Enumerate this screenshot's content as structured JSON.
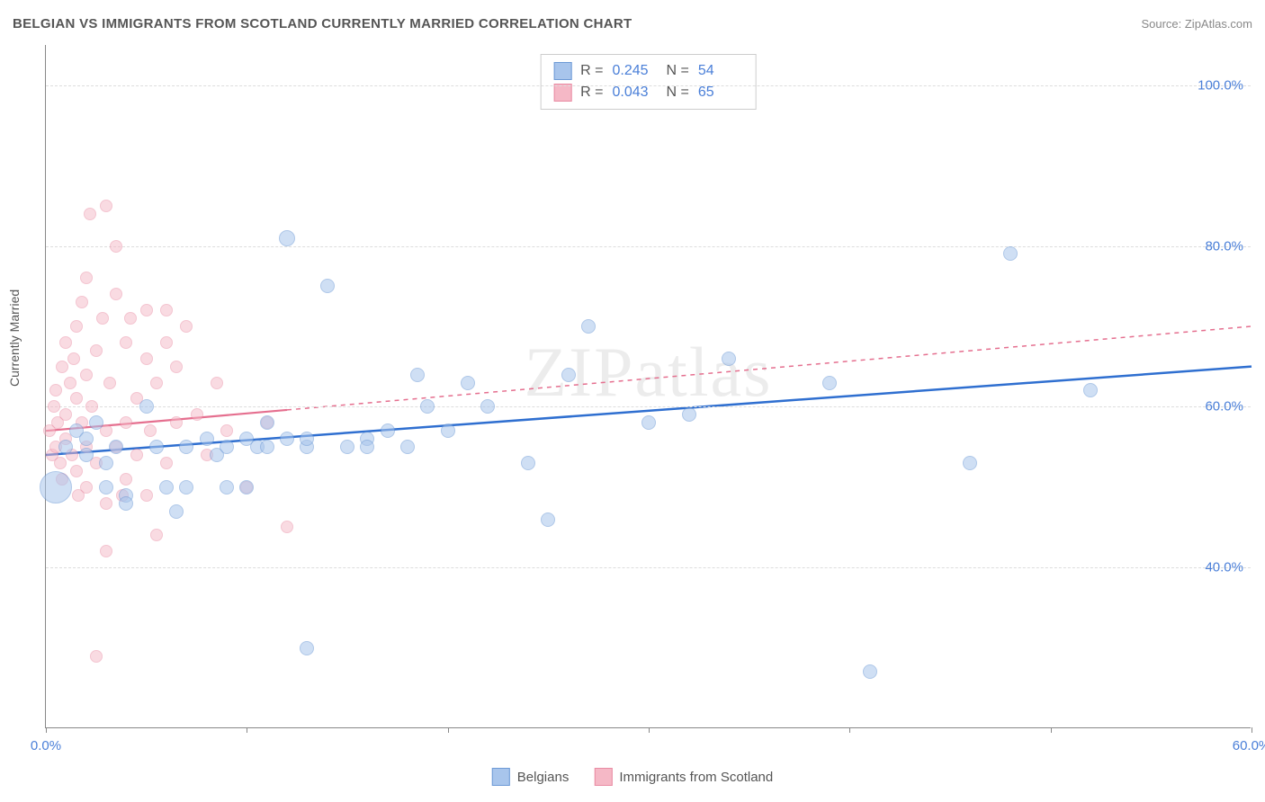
{
  "title": "BELGIAN VS IMMIGRANTS FROM SCOTLAND CURRENTLY MARRIED CORRELATION CHART",
  "source_prefix": "Source: ",
  "source_link": "ZipAtlas.com",
  "watermark": "ZIPatlas",
  "y_axis_label": "Currently Married",
  "chart": {
    "type": "scatter",
    "background_color": "#ffffff",
    "grid_color": "#dddddd",
    "axis_color": "#888888",
    "text_color": "#555555",
    "value_color": "#4a7fd8",
    "xlim": [
      0,
      60
    ],
    "ylim": [
      20,
      105
    ],
    "x_ticks": [
      0,
      10,
      20,
      30,
      40,
      50,
      60
    ],
    "x_tick_labels": {
      "0": "0.0%",
      "60": "60.0%"
    },
    "y_ticks": [
      40,
      60,
      80,
      100
    ],
    "y_tick_labels": {
      "40": "40.0%",
      "60": "60.0%",
      "80": "80.0%",
      "100": "100.0%"
    },
    "series": [
      {
        "key": "belgians",
        "label": "Belgians",
        "fill": "#a8c5ec",
        "stroke": "#6d9ad6",
        "fill_opacity": 0.55,
        "marker_r_default": 8,
        "line_color": "#2f6fd0",
        "line_width": 2.5,
        "line_dash": "none",
        "trend": {
          "x1": 0,
          "y1": 54,
          "x2": 60,
          "y2": 65
        },
        "stats": {
          "R": "0.245",
          "N": "54"
        },
        "points": [
          {
            "x": 0.5,
            "y": 50,
            "r": 18
          },
          {
            "x": 1,
            "y": 55
          },
          {
            "x": 1.5,
            "y": 57
          },
          {
            "x": 2,
            "y": 54
          },
          {
            "x": 2,
            "y": 56
          },
          {
            "x": 2.5,
            "y": 58
          },
          {
            "x": 3,
            "y": 53
          },
          {
            "x": 3,
            "y": 50
          },
          {
            "x": 3.5,
            "y": 55
          },
          {
            "x": 4,
            "y": 49
          },
          {
            "x": 4,
            "y": 48
          },
          {
            "x": 5,
            "y": 60
          },
          {
            "x": 5.5,
            "y": 55
          },
          {
            "x": 6,
            "y": 50
          },
          {
            "x": 6.5,
            "y": 47
          },
          {
            "x": 7,
            "y": 55
          },
          {
            "x": 7,
            "y": 50
          },
          {
            "x": 8,
            "y": 56
          },
          {
            "x": 8.5,
            "y": 54
          },
          {
            "x": 9,
            "y": 50
          },
          {
            "x": 9,
            "y": 55
          },
          {
            "x": 10,
            "y": 56
          },
          {
            "x": 10,
            "y": 50
          },
          {
            "x": 10.5,
            "y": 55
          },
          {
            "x": 11,
            "y": 58
          },
          {
            "x": 11,
            "y": 55
          },
          {
            "x": 12,
            "y": 56
          },
          {
            "x": 12,
            "y": 81,
            "r": 9
          },
          {
            "x": 13,
            "y": 55
          },
          {
            "x": 13,
            "y": 56
          },
          {
            "x": 13,
            "y": 30
          },
          {
            "x": 14,
            "y": 75
          },
          {
            "x": 15,
            "y": 55
          },
          {
            "x": 16,
            "y": 56
          },
          {
            "x": 16,
            "y": 55
          },
          {
            "x": 17,
            "y": 57
          },
          {
            "x": 18,
            "y": 55
          },
          {
            "x": 18.5,
            "y": 64
          },
          {
            "x": 19,
            "y": 60
          },
          {
            "x": 20,
            "y": 57
          },
          {
            "x": 21,
            "y": 63
          },
          {
            "x": 22,
            "y": 60
          },
          {
            "x": 24,
            "y": 53
          },
          {
            "x": 25,
            "y": 46
          },
          {
            "x": 26,
            "y": 64
          },
          {
            "x": 27,
            "y": 70
          },
          {
            "x": 30,
            "y": 58
          },
          {
            "x": 32,
            "y": 59
          },
          {
            "x": 34,
            "y": 66
          },
          {
            "x": 39,
            "y": 63
          },
          {
            "x": 41,
            "y": 27
          },
          {
            "x": 46,
            "y": 53
          },
          {
            "x": 48,
            "y": 79
          },
          {
            "x": 52,
            "y": 62
          }
        ]
      },
      {
        "key": "scotland",
        "label": "Immigrants from Scotland",
        "fill": "#f5b8c6",
        "stroke": "#e98ba3",
        "fill_opacity": 0.5,
        "marker_r_default": 7,
        "line_color": "#e56f8f",
        "line_width": 2.2,
        "line_dash": "5,5",
        "trend_solid_until_x": 12,
        "trend": {
          "x1": 0,
          "y1": 57,
          "x2": 60,
          "y2": 70
        },
        "stats": {
          "R": "0.043",
          "N": "65"
        },
        "points": [
          {
            "x": 0.2,
            "y": 57
          },
          {
            "x": 0.3,
            "y": 54
          },
          {
            "x": 0.4,
            "y": 60
          },
          {
            "x": 0.5,
            "y": 55
          },
          {
            "x": 0.5,
            "y": 62
          },
          {
            "x": 0.6,
            "y": 58
          },
          {
            "x": 0.7,
            "y": 53
          },
          {
            "x": 0.8,
            "y": 65
          },
          {
            "x": 0.8,
            "y": 51
          },
          {
            "x": 1,
            "y": 68
          },
          {
            "x": 1,
            "y": 56
          },
          {
            "x": 1,
            "y": 59
          },
          {
            "x": 1.2,
            "y": 63
          },
          {
            "x": 1.3,
            "y": 54
          },
          {
            "x": 1.4,
            "y": 66
          },
          {
            "x": 1.5,
            "y": 70
          },
          {
            "x": 1.5,
            "y": 52
          },
          {
            "x": 1.5,
            "y": 61
          },
          {
            "x": 1.6,
            "y": 49
          },
          {
            "x": 1.8,
            "y": 73
          },
          {
            "x": 1.8,
            "y": 58
          },
          {
            "x": 2,
            "y": 76
          },
          {
            "x": 2,
            "y": 55
          },
          {
            "x": 2,
            "y": 64
          },
          {
            "x": 2,
            "y": 50
          },
          {
            "x": 2.2,
            "y": 84
          },
          {
            "x": 2.3,
            "y": 60
          },
          {
            "x": 2.5,
            "y": 67
          },
          {
            "x": 2.5,
            "y": 53
          },
          {
            "x": 2.5,
            "y": 29
          },
          {
            "x": 2.8,
            "y": 71
          },
          {
            "x": 3,
            "y": 85
          },
          {
            "x": 3,
            "y": 57
          },
          {
            "x": 3,
            "y": 48
          },
          {
            "x": 3,
            "y": 42
          },
          {
            "x": 3.2,
            "y": 63
          },
          {
            "x": 3.5,
            "y": 74
          },
          {
            "x": 3.5,
            "y": 80
          },
          {
            "x": 3.5,
            "y": 55
          },
          {
            "x": 3.8,
            "y": 49
          },
          {
            "x": 4,
            "y": 68
          },
          {
            "x": 4,
            "y": 58
          },
          {
            "x": 4,
            "y": 51
          },
          {
            "x": 4.2,
            "y": 71
          },
          {
            "x": 4.5,
            "y": 61
          },
          {
            "x": 4.5,
            "y": 54
          },
          {
            "x": 5,
            "y": 66
          },
          {
            "x": 5,
            "y": 72
          },
          {
            "x": 5,
            "y": 49
          },
          {
            "x": 5.2,
            "y": 57
          },
          {
            "x": 5.5,
            "y": 44
          },
          {
            "x": 5.5,
            "y": 63
          },
          {
            "x": 6,
            "y": 68
          },
          {
            "x": 6,
            "y": 53
          },
          {
            "x": 6,
            "y": 72
          },
          {
            "x": 6.5,
            "y": 58
          },
          {
            "x": 6.5,
            "y": 65
          },
          {
            "x": 7,
            "y": 70
          },
          {
            "x": 7.5,
            "y": 59
          },
          {
            "x": 8,
            "y": 54
          },
          {
            "x": 8.5,
            "y": 63
          },
          {
            "x": 9,
            "y": 57
          },
          {
            "x": 10,
            "y": 50
          },
          {
            "x": 11,
            "y": 58
          },
          {
            "x": 12,
            "y": 45
          }
        ]
      }
    ],
    "stats_labels": {
      "R": "R =",
      "N": "N ="
    }
  },
  "legend": {
    "belgians": "Belgians",
    "scotland": "Immigrants from Scotland"
  }
}
